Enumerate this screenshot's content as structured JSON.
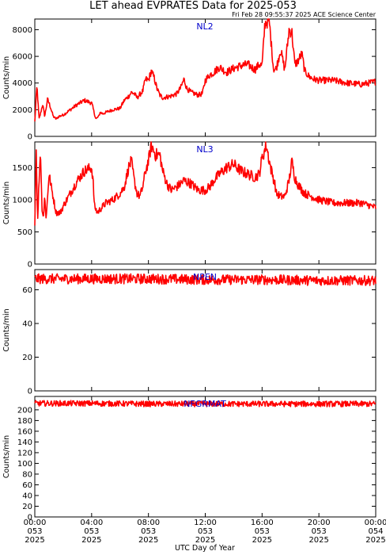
{
  "header": {
    "title": "LET ahead EVPRATES Data for 2025-053",
    "timestamp": "Fri Feb 28 09:55:37 2025 ACE Science Center"
  },
  "xaxis": {
    "label": "UTC Day of Year",
    "ticks": [
      {
        "hour": 0,
        "time": "00:00",
        "doy": "053",
        "year": "2025"
      },
      {
        "hour": 4,
        "time": "04:00",
        "doy": "053",
        "year": "2025"
      },
      {
        "hour": 8,
        "time": "08:00",
        "doy": "053",
        "year": "2025"
      },
      {
        "hour": 12,
        "time": "12:00",
        "doy": "053",
        "year": "2025"
      },
      {
        "hour": 16,
        "time": "16:00",
        "doy": "053",
        "year": "2025"
      },
      {
        "hour": 20,
        "time": "20:00",
        "doy": "053",
        "year": "2025"
      },
      {
        "hour": 24,
        "time": "00:00",
        "doy": "054",
        "year": "2025"
      }
    ]
  },
  "line_color": "#ff0000",
  "label_color": "#0000cc",
  "chart_data": [
    {
      "type": "line",
      "name": "NL2",
      "ylabel": "Counts/min",
      "xlim": [
        0,
        24
      ],
      "ylim": [
        0,
        8800
      ],
      "yticks": [
        0,
        2000,
        4000,
        6000,
        8000
      ],
      "noise": 0.06,
      "x": [
        0,
        0.15,
        0.3,
        0.4,
        0.55,
        0.7,
        0.9,
        1.1,
        1.3,
        1.5,
        1.7,
        2.0,
        2.5,
        3.0,
        3.5,
        4.0,
        4.3,
        4.5,
        4.6,
        4.8,
        5.0,
        5.5,
        6.0,
        6.3,
        6.6,
        6.8,
        7.0,
        7.2,
        7.6,
        7.8,
        8.0,
        8.2,
        8.4,
        8.6,
        8.8,
        9.0,
        9.5,
        10.0,
        10.3,
        10.5,
        10.7,
        11.0,
        11.5,
        11.8,
        12.0,
        12.3,
        12.6,
        13.0,
        13.5,
        14.0,
        14.5,
        15.0,
        15.5,
        15.8,
        16.0,
        16.2,
        16.5,
        16.8,
        16.9,
        17.0,
        17.3,
        17.6,
        17.9,
        18.1,
        18.3,
        18.5,
        18.8,
        19.0,
        19.3,
        19.6,
        20.0,
        21.0,
        22.0,
        23.0,
        24.0
      ],
      "y": [
        1100,
        3800,
        1300,
        1700,
        2400,
        1500,
        2800,
        2200,
        1500,
        1300,
        1500,
        1600,
        2000,
        2400,
        2700,
        2500,
        1300,
        1500,
        1800,
        1700,
        1800,
        2000,
        2100,
        2700,
        3000,
        3300,
        3200,
        2900,
        3400,
        4300,
        4200,
        4900,
        4400,
        3600,
        3100,
        2900,
        3000,
        3200,
        3700,
        4300,
        3600,
        3300,
        3100,
        3200,
        4200,
        4600,
        4800,
        5200,
        4800,
        5100,
        5300,
        5400,
        5000,
        5400,
        5300,
        8500,
        8700,
        5100,
        5000,
        5100,
        6500,
        5000,
        8000,
        7800,
        5400,
        5600,
        6200,
        4900,
        4500,
        4300,
        4200,
        4200,
        4000,
        3900,
        4100
      ]
    },
    {
      "type": "line",
      "name": "NL3",
      "ylabel": "Counts/min",
      "xlim": [
        0,
        24
      ],
      "ylim": [
        0,
        1900
      ],
      "yticks": [
        0,
        500,
        1000,
        1500
      ],
      "noise": 0.06,
      "x": [
        0,
        0.1,
        0.2,
        0.3,
        0.4,
        0.5,
        0.6,
        0.7,
        0.8,
        1.0,
        1.2,
        1.5,
        1.8,
        2.0,
        2.5,
        3.0,
        3.5,
        4.0,
        4.1,
        4.2,
        4.4,
        4.6,
        4.8,
        5.0,
        5.5,
        6.0,
        6.3,
        6.6,
        6.8,
        7.0,
        7.2,
        7.4,
        7.6,
        7.8,
        8.0,
        8.2,
        8.5,
        8.8,
        9.0,
        9.3,
        9.6,
        10.0,
        10.5,
        11.0,
        11.5,
        12.0,
        12.3,
        12.6,
        13.0,
        13.5,
        14.0,
        14.5,
        15.0,
        15.5,
        15.8,
        16.0,
        16.3,
        16.6,
        16.9,
        17.0,
        17.3,
        17.6,
        17.9,
        18.1,
        18.3,
        18.5,
        18.8,
        19.0,
        19.5,
        20.0,
        21.0,
        22.0,
        23.0,
        24.0
      ],
      "y": [
        600,
        1800,
        650,
        1300,
        1800,
        900,
        720,
        1050,
        700,
        1400,
        1150,
        800,
        800,
        900,
        1100,
        1300,
        1450,
        1500,
        1300,
        900,
        800,
        850,
        900,
        950,
        1000,
        1100,
        1200,
        1500,
        1600,
        1300,
        1100,
        1050,
        1200,
        1450,
        1600,
        1850,
        1700,
        1700,
        1450,
        1250,
        1150,
        1200,
        1300,
        1250,
        1150,
        1150,
        1200,
        1300,
        1400,
        1500,
        1550,
        1450,
        1400,
        1350,
        1400,
        1650,
        1850,
        1500,
        1250,
        1100,
        1050,
        1050,
        1300,
        1600,
        1350,
        1250,
        1150,
        1100,
        1050,
        1000,
        950,
        950,
        950,
        880
      ]
    },
    {
      "type": "line",
      "name": "NPEN",
      "ylabel": "Counts/min",
      "xlim": [
        0,
        24
      ],
      "ylim": [
        0,
        72
      ],
      "yticks": [
        0,
        20,
        40,
        60
      ],
      "noise": 0.045,
      "x": [
        0,
        4,
        8,
        12,
        16,
        20,
        24
      ],
      "y": [
        66.5,
        66.5,
        66.5,
        66,
        66,
        65.5,
        65.5
      ]
    },
    {
      "type": "line",
      "name": "NFGRMAT",
      "ylabel": "Counts/min",
      "xlim": [
        0,
        24
      ],
      "ylim": [
        0,
        225
      ],
      "yticks": [
        0,
        20,
        40,
        60,
        80,
        100,
        120,
        140,
        160,
        180,
        200
      ],
      "noise": 0.025,
      "x": [
        0,
        4,
        8,
        12,
        16,
        20,
        24
      ],
      "y": [
        212,
        212,
        211,
        211,
        211,
        211,
        211
      ]
    }
  ]
}
